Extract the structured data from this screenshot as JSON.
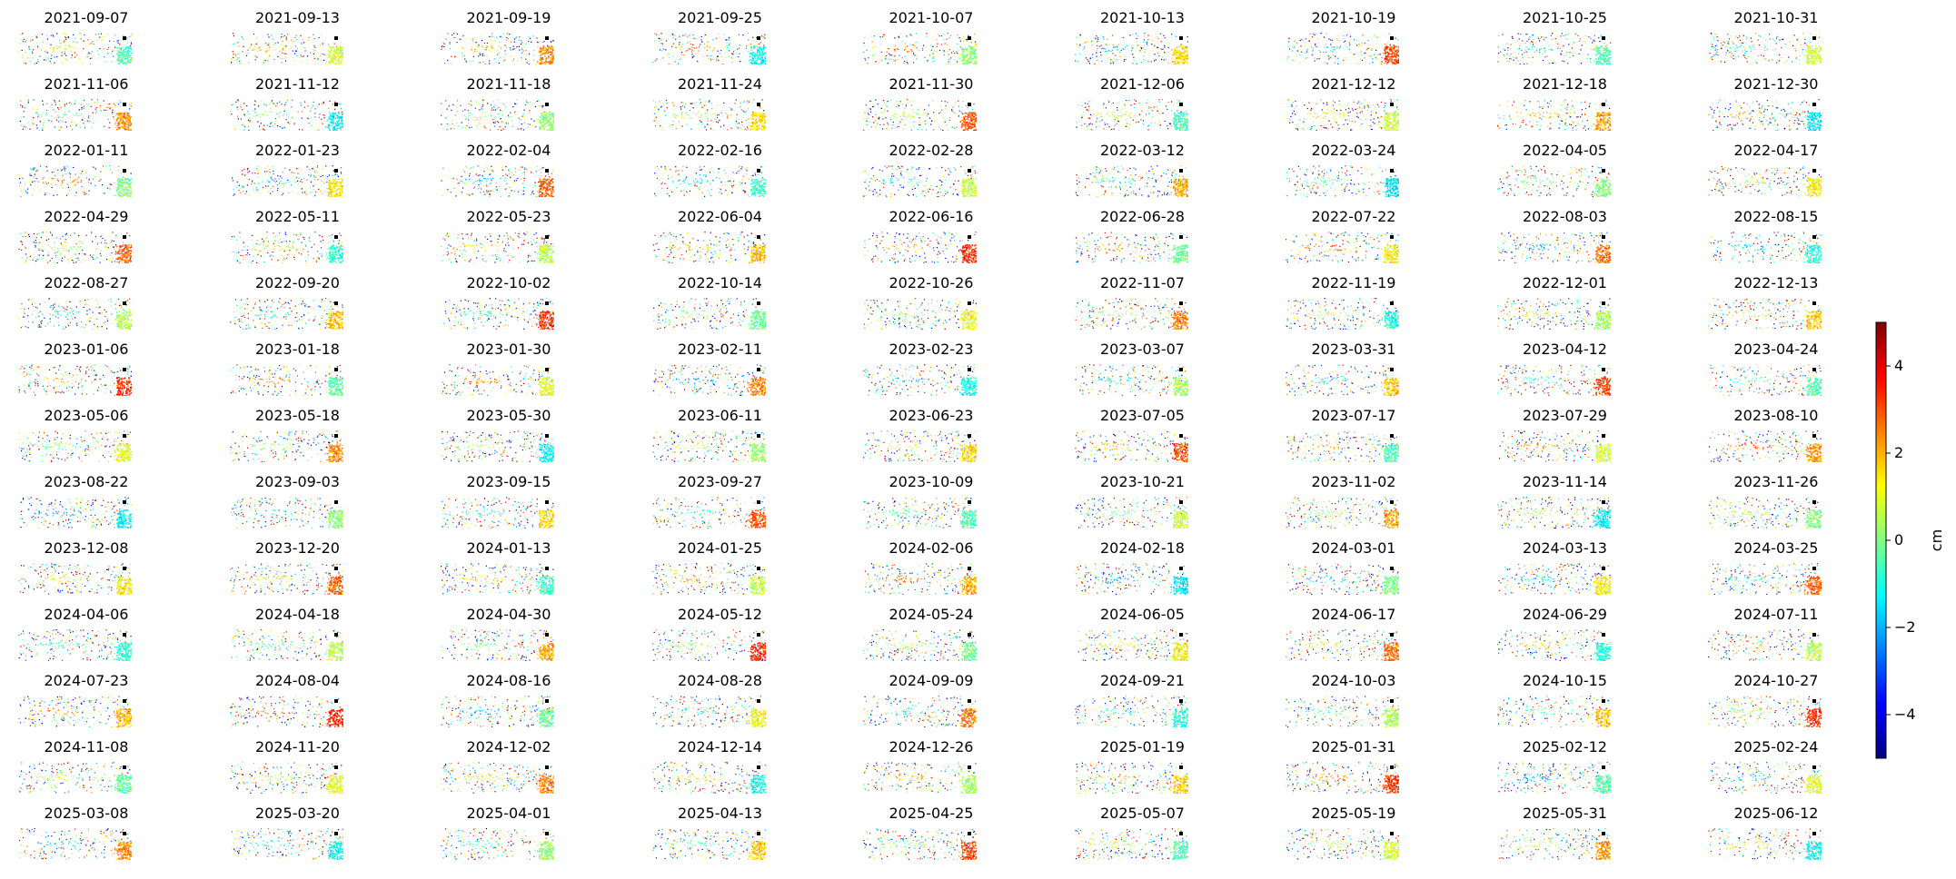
{
  "chart_data": {
    "type": "heatmap",
    "panel_titles": [
      "2021-09-07",
      "2021-09-13",
      "2021-09-19",
      "2021-09-25",
      "2021-10-07",
      "2021-10-13",
      "2021-10-19",
      "2021-10-25",
      "2021-10-31",
      "2021-11-06",
      "2021-11-12",
      "2021-11-18",
      "2021-11-24",
      "2021-11-30",
      "2021-12-06",
      "2021-12-12",
      "2021-12-18",
      "2021-12-30",
      "2022-01-11",
      "2022-01-23",
      "2022-02-04",
      "2022-02-16",
      "2022-02-28",
      "2022-03-12",
      "2022-03-24",
      "2022-04-05",
      "2022-04-17",
      "2022-04-29",
      "2022-05-11",
      "2022-05-23",
      "2022-06-04",
      "2022-06-16",
      "2022-06-28",
      "2022-07-22",
      "2022-08-03",
      "2022-08-15",
      "2022-08-27",
      "2022-09-20",
      "2022-10-02",
      "2022-10-14",
      "2022-10-26",
      "2022-11-07",
      "2022-11-19",
      "2022-12-01",
      "2022-12-13",
      "2023-01-06",
      "2023-01-18",
      "2023-01-30",
      "2023-02-11",
      "2023-02-23",
      "2023-03-07",
      "2023-03-31",
      "2023-04-12",
      "2023-04-24",
      "2023-05-06",
      "2023-05-18",
      "2023-05-30",
      "2023-06-11",
      "2023-06-23",
      "2023-07-05",
      "2023-07-17",
      "2023-07-29",
      "2023-08-10",
      "2023-08-22",
      "2023-09-03",
      "2023-09-15",
      "2023-09-27",
      "2023-10-09",
      "2023-10-21",
      "2023-11-02",
      "2023-11-14",
      "2023-11-26",
      "2023-12-08",
      "2023-12-20",
      "2024-01-13",
      "2024-01-25",
      "2024-02-06",
      "2024-02-18",
      "2024-03-01",
      "2024-03-13",
      "2024-03-25",
      "2024-04-06",
      "2024-04-18",
      "2024-04-30",
      "2024-05-12",
      "2024-05-24",
      "2024-06-05",
      "2024-06-17",
      "2024-06-29",
      "2024-07-11",
      "2024-07-23",
      "2024-08-04",
      "2024-08-16",
      "2024-08-28",
      "2024-09-09",
      "2024-09-21",
      "2024-10-03",
      "2024-10-15",
      "2024-10-27",
      "2024-11-08",
      "2024-11-20",
      "2024-12-02",
      "2024-12-14",
      "2024-12-26",
      "2025-01-19",
      "2025-01-31",
      "2025-02-12",
      "2025-02-24",
      "2025-03-08",
      "2025-03-20",
      "2025-04-01",
      "2025-04-13",
      "2025-04-25",
      "2025-05-07",
      "2025-05-19",
      "2025-05-31",
      "2025-06-12"
    ],
    "columns": 9,
    "rows": 13,
    "colorbar": {
      "label": "cm",
      "range": [
        -5,
        5
      ],
      "ticks": [
        -4,
        -2,
        0,
        2,
        4
      ],
      "tick_labels": [
        "−4",
        "−2",
        "0",
        "2",
        "4"
      ],
      "colormap": "jet",
      "colors": [
        "#000080",
        "#0000ff",
        "#0080ff",
        "#00ffff",
        "#80ff80",
        "#ffff00",
        "#ff8000",
        "#ff0000",
        "#800000"
      ]
    }
  }
}
